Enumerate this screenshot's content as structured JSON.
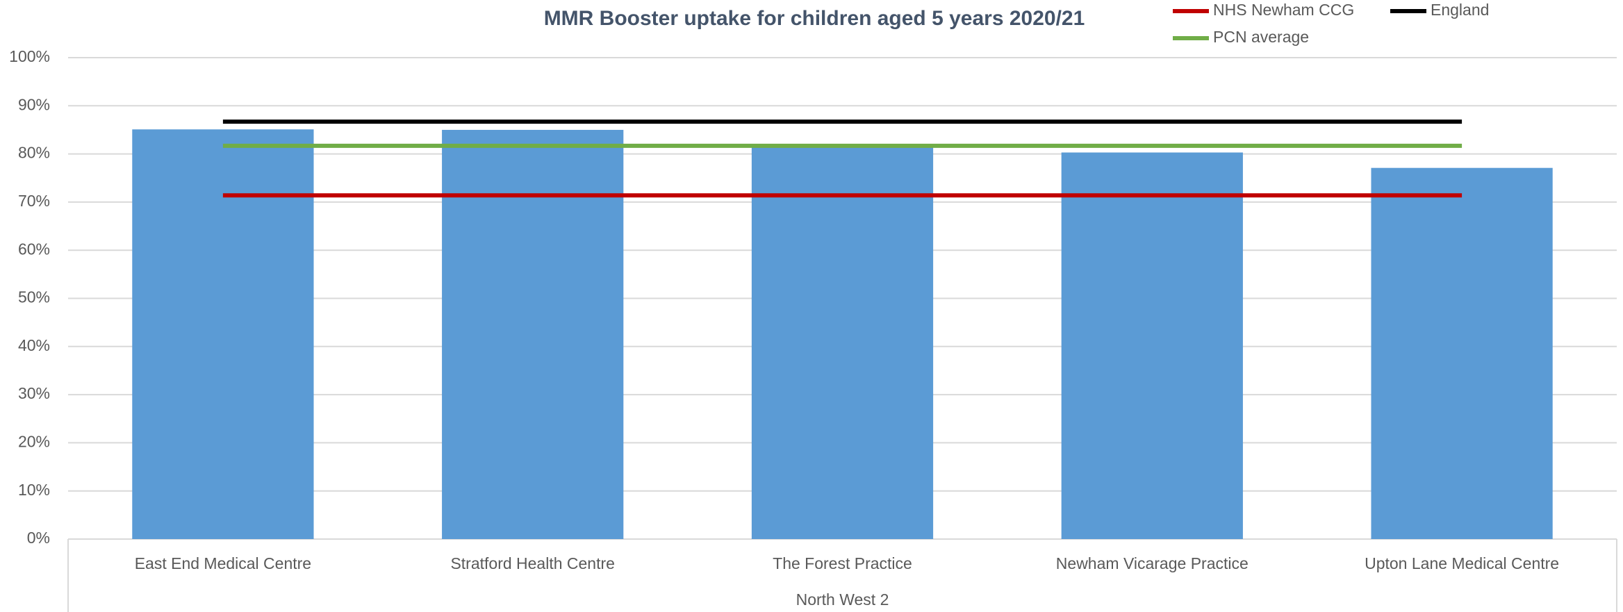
{
  "chart_data": {
    "type": "bar",
    "title": "MMR Booster uptake for children aged 5 years 2020/21",
    "categories": [
      "East End Medical Centre",
      "Stratford Health Centre",
      "The Forest Practice",
      "Newham Vicarage Practice",
      "Upton Lane Medical Centre"
    ],
    "group": "North West 2",
    "series": [
      {
        "type": "bar",
        "color": "#5b9bd5",
        "values": [
          85.1,
          85.0,
          81.4,
          80.3,
          77.1
        ]
      },
      {
        "type": "line",
        "name": "NHS Newham CCG",
        "color": "#c00000",
        "values": [
          71.4,
          71.4,
          71.4,
          71.4,
          71.4
        ]
      },
      {
        "type": "line",
        "name": "England",
        "color": "#000000",
        "values": [
          86.7,
          86.7,
          86.7,
          86.7,
          86.7
        ]
      },
      {
        "type": "line",
        "name": "PCN average",
        "color": "#70ad47",
        "values": [
          81.7,
          81.7,
          81.7,
          81.7,
          81.7
        ]
      }
    ],
    "ylim": [
      0,
      100
    ],
    "yticks": [
      {
        "value": 0,
        "label": "0%"
      },
      {
        "value": 10,
        "label": "10%"
      },
      {
        "value": 20,
        "label": "20%"
      },
      {
        "value": 30,
        "label": "30%"
      },
      {
        "value": 40,
        "label": "40%"
      },
      {
        "value": 50,
        "label": "50%"
      },
      {
        "value": 60,
        "label": "60%"
      },
      {
        "value": 70,
        "label": "70%"
      },
      {
        "value": 80,
        "label": "80%"
      },
      {
        "value": 90,
        "label": "90%"
      },
      {
        "value": 100,
        "label": "100%"
      }
    ],
    "grid": true
  }
}
